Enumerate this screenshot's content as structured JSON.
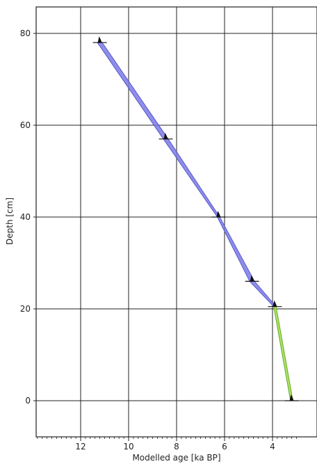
{
  "chart_data": {
    "type": "area",
    "title": "",
    "xlabel": "Modelled age [ka BP]",
    "ylabel": "Depth [cm]",
    "x_reversed": true,
    "y_reversed": false,
    "xlim": [
      14,
      3
    ],
    "ylim": [
      -8,
      86
    ],
    "xticks": [
      12,
      10,
      8,
      6,
      4
    ],
    "yticks": [
      0,
      20,
      40,
      60,
      80
    ],
    "x_minor_step": 0.2,
    "grid": true,
    "series": [
      {
        "color": "#7b7be6",
        "points": [
          {
            "depth": 78,
            "age_min": 11.3,
            "age_max": 11.1
          },
          {
            "depth": 57,
            "age_min": 8.55,
            "age_max": 8.35
          },
          {
            "depth": 40,
            "age_min": 6.3,
            "age_max": 6.2
          },
          {
            "depth": 26,
            "age_min": 4.95,
            "age_max": 4.75
          },
          {
            "depth": 20.5,
            "age_min": 3.95,
            "age_max": 3.85
          }
        ]
      },
      {
        "color": "#9be04a",
        "points": [
          {
            "depth": 20.5,
            "age_min": 3.95,
            "age_max": 3.85
          },
          {
            "depth": 0,
            "age_min": 3.25,
            "age_max": 3.15
          }
        ]
      }
    ],
    "dates": [
      {
        "depth": 78,
        "age": 11.2
      },
      {
        "depth": 57,
        "age": 8.45
      },
      {
        "depth": 40,
        "age": 6.25
      },
      {
        "depth": 26,
        "age": 4.85
      },
      {
        "depth": 20.5,
        "age": 3.9
      },
      {
        "depth": 0,
        "age": 3.2
      }
    ],
    "colors": {
      "envelope_stroke": "#5555cc",
      "green_stroke": "#6aa82a",
      "marker": "#111111",
      "grid": "#222222"
    }
  }
}
